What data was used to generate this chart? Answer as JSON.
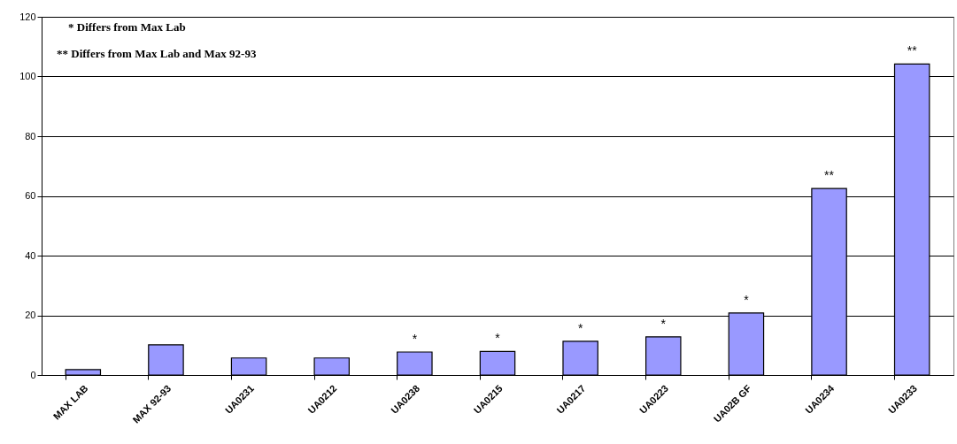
{
  "chart_data": {
    "type": "bar",
    "categories": [
      "MAX LAB",
      "MAX 92-93",
      "UA0231",
      "UA0212",
      "UA0238",
      "UA0215",
      "UA0217",
      "UA0223",
      "UA02B GF",
      "UA0234",
      "UA0233"
    ],
    "values": [
      1.8,
      10.1,
      5.7,
      5.7,
      7.7,
      7.9,
      11.3,
      12.8,
      20.8,
      62.5,
      104.2
    ],
    "color": "#9999ff",
    "ylim": [
      0,
      120
    ],
    "yticks": [
      0,
      20,
      40,
      60,
      80,
      100,
      120
    ],
    "grid": "y",
    "annotations": [
      "* Differs from Max Lab",
      "** Differs from Max Lab and Max 92-93",
      {
        "text": "*",
        "x": "UA0238",
        "y": 7.7
      },
      {
        "text": "*",
        "x": "UA0215",
        "y": 7.9
      },
      {
        "text": "*",
        "x": "UA0217",
        "y": 11.3
      },
      {
        "text": "*",
        "x": "UA0223",
        "y": 12.8
      },
      {
        "text": "*",
        "x": "UA02B GF",
        "y": 20.8
      },
      {
        "text": "**",
        "x": "UA0234",
        "y": 62.5
      },
      {
        "text": "**",
        "x": "UA0233",
        "y": 104.2
      }
    ]
  }
}
